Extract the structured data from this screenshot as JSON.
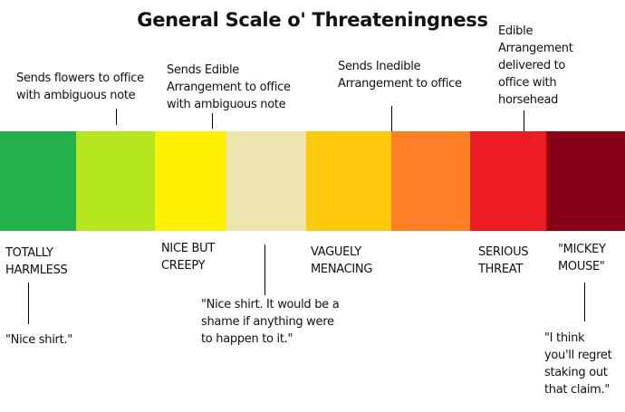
{
  "title": "General Scale o' Threateningness",
  "scale": [
    {
      "color": "#22b14c"
    },
    {
      "color": "#b5e61d"
    },
    {
      "color": "#fff200"
    },
    {
      "color": "#efe4b0"
    },
    {
      "color": "#ffc90e"
    },
    {
      "color": "#ff7f27"
    },
    {
      "color": "#ed1c24"
    },
    {
      "color": "#880015"
    }
  ],
  "top_annotations": [
    "Sends flowers to office\nwith ambiguous note",
    "Sends Edible\nArrangement to office\nwith ambiguous note",
    "Sends Inedible\nArrangement to office",
    "Edible\nArrangement\ndelivered to\noffice with\nhorsehead"
  ],
  "levels": [
    "TOTALLY\nHARMLESS",
    "NICE BUT\nCREEPY",
    "VAGUELY\nMENACING",
    "SERIOUS\nTHREAT",
    "\"MICKEY\nMOUSE\""
  ],
  "quotes": [
    "\"Nice shirt.\"",
    "\"Nice shirt. It would be a\nshame if anything were\nto happen to it.\"",
    "\"I think\nyou'll regret\nstaking out\nthat claim.\""
  ]
}
